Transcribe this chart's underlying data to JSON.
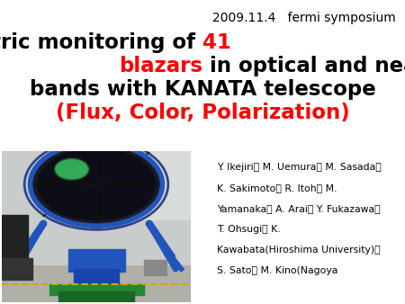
{
  "background_color": "#ffffff",
  "date_text": "2009.11.4   fermi symposium",
  "date_fontsize": 10,
  "date_color": "#000000",
  "title_fontsize": 16.5,
  "authors_lines": [
    "Y. Ikejiri， M. Uemura， M. Sasada，",
    "K. Sakimoto， R. Itoh， M.",
    "Yamanaka， A. Arai， Y. Fukazawa，",
    "T. Ohsugi， K.",
    "Kawabata(Hiroshima University)，",
    "S. Sato， M. Kino(Nagoya"
  ],
  "authors_fontsize": 7.8
}
